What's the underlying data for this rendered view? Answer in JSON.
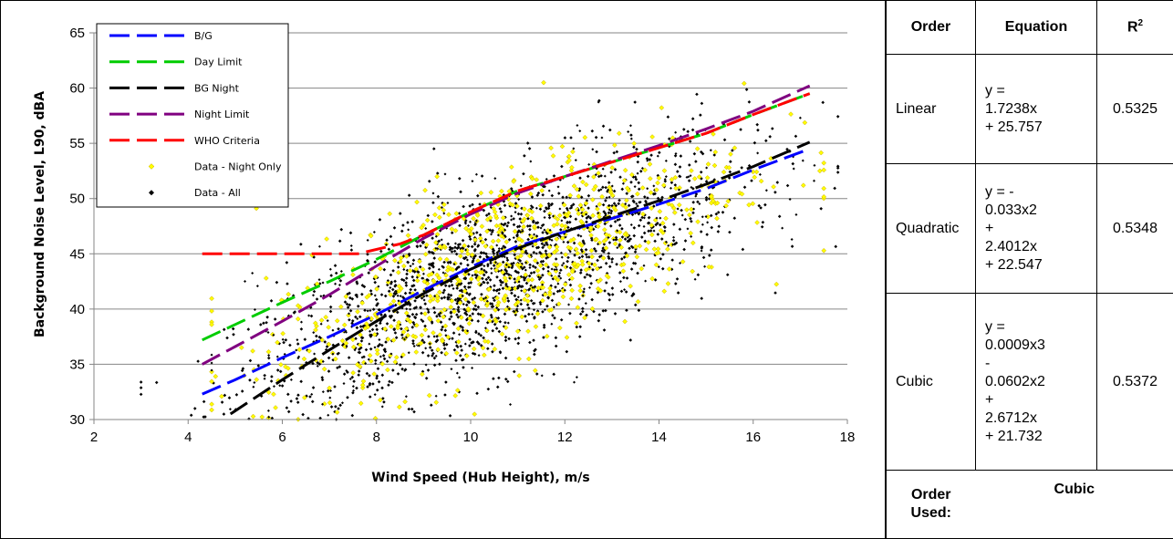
{
  "chart_data": {
    "type": "scatter",
    "xlabel": "Wind Speed (Hub Height), m/s",
    "ylabel": "Background Noise Level, L90, dBA",
    "xlim": [
      2,
      18
    ],
    "ylim": [
      30,
      65
    ],
    "xticks": [
      2,
      4,
      6,
      8,
      10,
      12,
      14,
      16,
      18
    ],
    "yticks": [
      30,
      35,
      40,
      45,
      50,
      55,
      60,
      65
    ],
    "grid": "horizontal",
    "legend_position": "top-left",
    "series": [
      {
        "name": "B/G",
        "kind": "line",
        "style": "dashed",
        "color": "#0000FF",
        "x": [
          4.3,
          5,
          6,
          7,
          8,
          9,
          10,
          11,
          12,
          13,
          14,
          15,
          16,
          17.2
        ],
        "y": [
          32.3,
          33.6,
          35.6,
          37.5,
          39.5,
          41.7,
          43.8,
          45.7,
          47.0,
          48.2,
          49.5,
          50.9,
          52.6,
          54.5
        ]
      },
      {
        "name": "Day Limit",
        "kind": "line",
        "style": "dashed",
        "color": "#00CC00",
        "x": [
          4.3,
          5,
          6,
          7,
          8,
          9,
          10,
          11,
          12,
          13,
          14,
          15,
          16,
          17.2
        ],
        "y": [
          37.2,
          38.6,
          40.6,
          42.5,
          44.5,
          46.7,
          48.8,
          50.7,
          52.0,
          53.3,
          54.6,
          55.9,
          57.6,
          59.5
        ]
      },
      {
        "name": "BG Night",
        "kind": "line",
        "style": "dashed",
        "color": "#000000",
        "x": [
          4.9,
          6,
          7,
          8,
          9,
          10,
          11,
          12,
          13,
          14,
          15,
          16,
          17.2
        ],
        "y": [
          30.5,
          33.6,
          36.3,
          38.9,
          41.4,
          43.6,
          45.5,
          47.0,
          48.4,
          49.8,
          51.3,
          52.9,
          55.1
        ]
      },
      {
        "name": "Night Limit",
        "kind": "line",
        "style": "dashed",
        "color": "#800080",
        "x": [
          4.3,
          5,
          6,
          7,
          8,
          9,
          10,
          11,
          12,
          13,
          14,
          15,
          16,
          17.2
        ],
        "y": [
          35.0,
          36.6,
          38.9,
          41.3,
          43.9,
          46.4,
          48.6,
          50.5,
          52.0,
          53.4,
          54.8,
          56.3,
          57.9,
          60.2
        ]
      },
      {
        "name": "WHO Criteria",
        "kind": "line",
        "style": "dashed",
        "color": "#FF0000",
        "x": [
          4.3,
          7.6,
          8.5,
          9,
          10,
          11,
          12,
          13,
          14,
          15,
          16,
          17.2
        ],
        "y": [
          45,
          45,
          45.9,
          46.7,
          48.8,
          50.7,
          52.0,
          53.3,
          54.6,
          55.9,
          57.6,
          59.5
        ]
      },
      {
        "name": "Data - Night Only",
        "kind": "scatter",
        "color": "#FFFF00"
      },
      {
        "name": "Data - All",
        "kind": "scatter",
        "color": "#000000"
      }
    ]
  },
  "table": {
    "headers": {
      "order": "Order",
      "equation": "Equation",
      "r2_main": "R",
      "r2_sup": "2"
    },
    "rows": [
      {
        "order": "Linear",
        "equation": "y =\n1.7238x\n+ 25.757",
        "r2": "0.5325"
      },
      {
        "order": "Quadratic",
        "equation": "y = -\n0.033x2\n+\n2.4012x\n+ 22.547",
        "r2": "0.5348"
      },
      {
        "order": "Cubic",
        "equation": "y =\n0.0009x3\n-\n0.0602x2\n+\n2.6712x\n+ 21.732",
        "r2": "0.5372"
      }
    ],
    "order_used_label": "Order\nUsed:",
    "order_used_value": "Cubic"
  }
}
